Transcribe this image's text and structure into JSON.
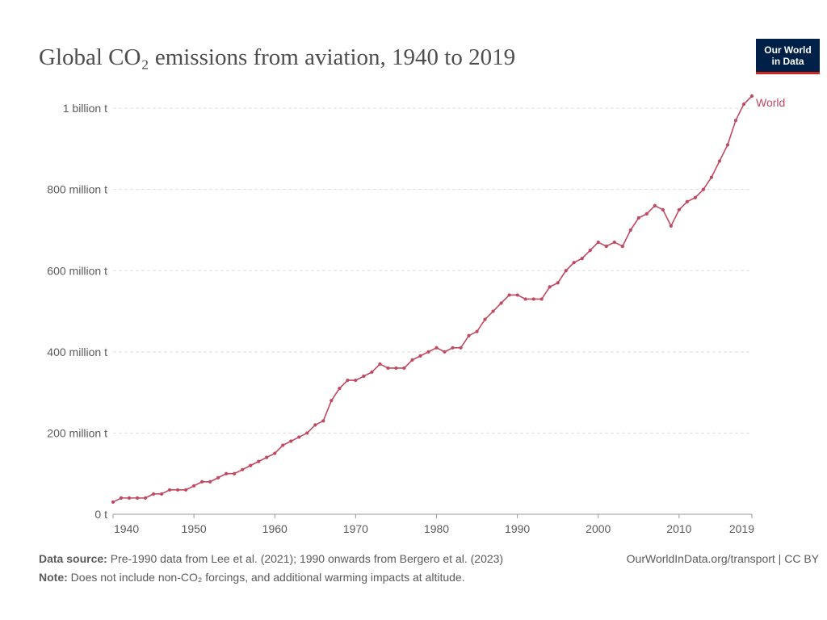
{
  "chart_data": {
    "type": "line",
    "title": "Global CO₂ emissions from aviation, 1940 to 2019",
    "logo": [
      "Our World",
      "in Data"
    ],
    "x": [
      1940,
      1941,
      1942,
      1943,
      1944,
      1945,
      1946,
      1947,
      1948,
      1949,
      1950,
      1951,
      1952,
      1953,
      1954,
      1955,
      1956,
      1957,
      1958,
      1959,
      1960,
      1961,
      1962,
      1963,
      1964,
      1965,
      1966,
      1967,
      1968,
      1969,
      1970,
      1971,
      1972,
      1973,
      1974,
      1975,
      1976,
      1977,
      1978,
      1979,
      1980,
      1981,
      1982,
      1983,
      1984,
      1985,
      1986,
      1987,
      1988,
      1989,
      1990,
      1991,
      1992,
      1993,
      1994,
      1995,
      1996,
      1997,
      1998,
      1999,
      2000,
      2001,
      2002,
      2003,
      2004,
      2005,
      2006,
      2007,
      2008,
      2009,
      2010,
      2011,
      2012,
      2013,
      2014,
      2015,
      2016,
      2017,
      2018,
      2019
    ],
    "series": [
      {
        "name": "World",
        "color": "#c0485f",
        "values": [
          30000000,
          40000000,
          40000000,
          40000000,
          40000000,
          50000000,
          50000000,
          60000000,
          60000000,
          60000000,
          70000000,
          80000000,
          80000000,
          90000000,
          100000000,
          100000000,
          110000000,
          120000000,
          130000000,
          140000000,
          150000000,
          170000000,
          180000000,
          190000000,
          200000000,
          220000000,
          230000000,
          280000000,
          310000000,
          330000000,
          330000000,
          340000000,
          350000000,
          370000000,
          360000000,
          360000000,
          360000000,
          380000000,
          390000000,
          400000000,
          410000000,
          400000000,
          410000000,
          410000000,
          440000000,
          450000000,
          480000000,
          500000000,
          520000000,
          540000000,
          540000000,
          530000000,
          530000000,
          530000000,
          560000000,
          570000000,
          600000000,
          620000000,
          630000000,
          650000000,
          670000000,
          660000000,
          670000000,
          660000000,
          700000000,
          730000000,
          740000000,
          760000000,
          750000000,
          710000000,
          750000000,
          770000000,
          780000000,
          800000000,
          830000000,
          870000000,
          910000000,
          970000000,
          1010000000,
          1030000000
        ]
      }
    ],
    "xlim": [
      1940,
      2019
    ],
    "xticks": [
      1940,
      1950,
      1960,
      1970,
      1980,
      1990,
      2000,
      2010,
      2019
    ],
    "ylim": [
      0,
      1030000000
    ],
    "yticks": [
      {
        "value": 0,
        "label": "0 t"
      },
      {
        "value": 200000000,
        "label": "200 million t"
      },
      {
        "value": 400000000,
        "label": "400 million t"
      },
      {
        "value": 600000000,
        "label": "600 million t"
      },
      {
        "value": 800000000,
        "label": "800 million t"
      },
      {
        "value": 1000000000,
        "label": "1 billion t"
      }
    ],
    "grid": true,
    "source": {
      "label": "Data source:",
      "text": "Pre-1990 data from Lee et al. (2021); 1990 onwards from Bergero et al. (2023)"
    },
    "note": {
      "label": "Note:",
      "text": "Does not include non-CO₂ forcings, and additional warming impacts at altitude."
    },
    "credit": "OurWorldInData.org/transport | CC BY"
  }
}
